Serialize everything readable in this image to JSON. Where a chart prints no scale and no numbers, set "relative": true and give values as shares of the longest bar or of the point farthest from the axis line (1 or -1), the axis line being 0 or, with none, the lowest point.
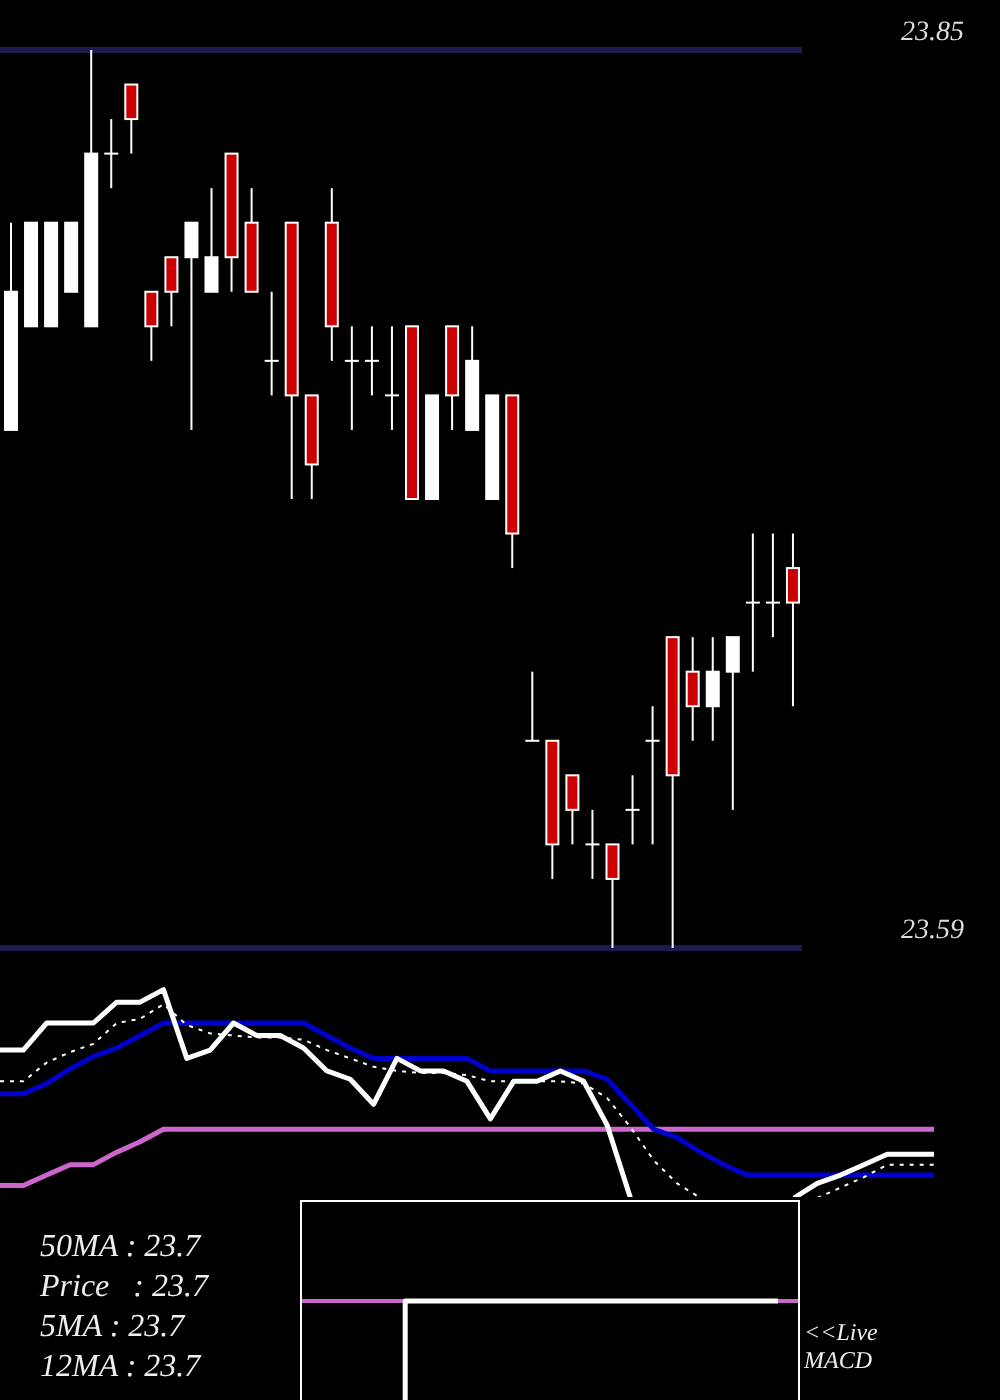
{
  "chart_data": [
    {
      "type": "candlestick",
      "categories": [
        null,
        null,
        null,
        null,
        null,
        null,
        null,
        null,
        null,
        null,
        null,
        null,
        null,
        null,
        null,
        null,
        null,
        null,
        null,
        null,
        null,
        null,
        null,
        null,
        null,
        null,
        null,
        null,
        null,
        null,
        null,
        null,
        null,
        null,
        null,
        null,
        null,
        null,
        null,
        null
      ],
      "ohlc": [
        [
          23.74,
          23.8,
          23.74,
          23.78
        ],
        [
          23.77,
          23.8,
          23.77,
          23.8
        ],
        [
          23.77,
          23.8,
          23.77,
          23.8
        ],
        [
          23.78,
          23.8,
          23.78,
          23.8
        ],
        [
          23.77,
          23.85,
          23.77,
          23.82
        ],
        [
          23.82,
          23.83,
          23.81,
          23.82
        ],
        [
          23.84,
          23.84,
          23.82,
          23.83
        ],
        [
          23.78,
          23.78,
          23.76,
          23.77
        ],
        [
          23.79,
          23.79,
          23.77,
          23.78
        ],
        [
          23.79,
          23.8,
          23.74,
          23.8
        ],
        [
          23.78,
          23.81,
          23.78,
          23.79
        ],
        [
          23.82,
          23.82,
          23.78,
          23.79
        ],
        [
          23.8,
          23.81,
          23.78,
          23.78
        ],
        [
          23.76,
          23.78,
          23.75,
          23.76
        ],
        [
          23.8,
          23.8,
          23.72,
          23.75
        ],
        [
          23.75,
          23.75,
          23.72,
          23.73
        ],
        [
          23.8,
          23.81,
          23.76,
          23.77
        ],
        [
          23.76,
          23.77,
          23.74,
          23.76
        ],
        [
          23.76,
          23.77,
          23.75,
          23.76
        ],
        [
          23.75,
          23.77,
          23.74,
          23.75
        ],
        [
          23.77,
          23.77,
          23.72,
          23.72
        ],
        [
          23.72,
          23.75,
          23.72,
          23.75
        ],
        [
          23.77,
          23.77,
          23.74,
          23.75
        ],
        [
          23.74,
          23.77,
          23.74,
          23.76
        ],
        [
          23.72,
          23.75,
          23.72,
          23.75
        ],
        [
          23.75,
          23.75,
          23.7,
          23.71
        ],
        [
          23.65,
          23.67,
          23.65,
          23.65
        ],
        [
          23.65,
          23.65,
          23.61,
          23.62
        ],
        [
          23.64,
          23.64,
          23.62,
          23.63
        ],
        [
          23.62,
          23.63,
          23.61,
          23.62
        ],
        [
          23.62,
          23.62,
          23.59,
          23.61
        ],
        [
          23.63,
          23.64,
          23.62,
          23.63
        ],
        [
          23.65,
          23.66,
          23.62,
          23.65
        ],
        [
          23.68,
          23.68,
          23.59,
          23.64
        ],
        [
          23.67,
          23.68,
          23.65,
          23.66
        ],
        [
          23.66,
          23.68,
          23.65,
          23.67
        ],
        [
          23.67,
          23.68,
          23.63,
          23.68
        ],
        [
          23.69,
          23.71,
          23.67,
          23.69
        ],
        [
          23.69,
          23.71,
          23.68,
          23.69
        ],
        [
          23.7,
          23.71,
          23.66,
          23.69
        ]
      ],
      "colors": [
        "#ffffff",
        "#ffffff",
        "#ffffff",
        "#ffffff",
        "#ffffff",
        "#ffffff",
        "#cc0000",
        "#cc0000",
        "#cc0000",
        "#ffffff",
        "#ffffff",
        "#cc0000",
        "#cc0000",
        "#ffffff",
        "#cc0000",
        "#cc0000",
        "#cc0000",
        "#ffffff",
        "#ffffff",
        "#ffffff",
        "#cc0000",
        "#ffffff",
        "#cc0000",
        "#ffffff",
        "#ffffff",
        "#cc0000",
        "#ffffff",
        "#cc0000",
        "#cc0000",
        "#ffffff",
        "#cc0000",
        "#ffffff",
        "#ffffff",
        "#cc0000",
        "#cc0000",
        "#ffffff",
        "#ffffff",
        "#ffffff",
        "#ffffff",
        "#cc0000"
      ],
      "ylim": [
        23.59,
        23.85
      ],
      "yticks": [
        23.59,
        23.85
      ],
      "grid": "y",
      "tick_labels": "y"
    },
    {
      "type": "line",
      "relative": true,
      "categories": [
        null,
        null,
        null,
        null,
        null,
        null,
        null,
        null,
        null,
        null,
        null,
        null,
        null,
        null,
        null,
        null,
        null,
        null,
        null,
        null,
        null,
        null,
        null,
        null,
        null,
        null,
        null,
        null,
        null,
        null,
        null,
        null,
        null,
        null,
        null,
        null,
        null,
        null,
        null,
        null,
        null
      ],
      "series": [
        {
          "color": "#cc66cc",
          "values": [
            0.06,
            0.06,
            0.11,
            0.16,
            0.16,
            0.22,
            0.27,
            0.33,
            0.33,
            0.33,
            0.33,
            0.33,
            0.33,
            0.33,
            0.33,
            0.33,
            0.33,
            0.33,
            0.33,
            0.33,
            0.33,
            0.33,
            0.33,
            0.33,
            0.33,
            0.33,
            0.33,
            0.33,
            0.33,
            0.33,
            0.33,
            0.33,
            0.33,
            0.33,
            0.33,
            0.33,
            0.33,
            0.33,
            0.33,
            0.33,
            0.33
          ]
        },
        {
          "color": "#0000cc",
          "values": [
            0.5,
            0.5,
            0.55,
            0.62,
            0.68,
            0.72,
            0.78,
            0.84,
            0.84,
            0.84,
            0.84,
            0.84,
            0.84,
            0.84,
            0.78,
            0.72,
            0.67,
            0.67,
            0.67,
            0.67,
            0.67,
            0.61,
            0.61,
            0.61,
            0.61,
            0.61,
            0.57,
            0.45,
            0.33,
            0.29,
            0.22,
            0.16,
            0.11,
            0.11,
            0.11,
            0.11,
            0.11,
            0.11,
            0.11,
            0.11,
            0.11
          ]
        },
        {
          "color": "#ffffff",
          "line_style": "dotted",
          "values": [
            0.56,
            0.56,
            0.65,
            0.7,
            0.74,
            0.84,
            0.86,
            0.93,
            0.83,
            0.79,
            0.78,
            0.77,
            0.77,
            0.76,
            0.71,
            0.67,
            0.63,
            0.61,
            0.6,
            0.6,
            0.59,
            0.56,
            0.56,
            0.56,
            0.56,
            0.55,
            0.48,
            0.34,
            0.18,
            0.07,
            0,
            null,
            null,
            null,
            null,
            0,
            0.05,
            0.1,
            0.16,
            0.16,
            0.16
          ]
        },
        {
          "color": "#ffffff",
          "values": [
            0.71,
            0.71,
            0.84,
            0.84,
            0.84,
            0.94,
            0.94,
            1,
            0.67,
            0.71,
            0.84,
            0.78,
            0.78,
            0.72,
            0.61,
            0.57,
            0.45,
            0.67,
            0.61,
            0.61,
            0.56,
            0.38,
            0.56,
            0.56,
            0.61,
            0.56,
            0.35,
            0,
            null,
            null,
            null,
            null,
            null,
            null,
            0,
            0.07,
            0.11,
            0.16,
            0.21,
            0.21,
            0.21
          ]
        }
      ],
      "annotations": [
        "50MA : 23.7",
        "Price   : 23.7",
        "5MA : 23.7",
        "12MA : 23.7"
      ]
    },
    {
      "type": "line",
      "relative": true,
      "categories": [
        null,
        null,
        null,
        null,
        null,
        null,
        null,
        null,
        null,
        null,
        null,
        null,
        null,
        null,
        null,
        null,
        null,
        null,
        null,
        null,
        null
      ],
      "series": [
        {
          "type": "step",
          "color": "#ffffff",
          "values": [
            null,
            null,
            null,
            null,
            -1,
            0,
            0,
            0,
            0,
            0,
            0,
            0,
            0,
            0,
            0,
            0,
            0,
            0,
            0,
            0,
            0
          ]
        }
      ],
      "ref_lines": [
        {
          "axis": "y",
          "value": 0,
          "color": "#cc66cc"
        }
      ],
      "annotations": [
        "<<Live MACD"
      ]
    }
  ]
}
